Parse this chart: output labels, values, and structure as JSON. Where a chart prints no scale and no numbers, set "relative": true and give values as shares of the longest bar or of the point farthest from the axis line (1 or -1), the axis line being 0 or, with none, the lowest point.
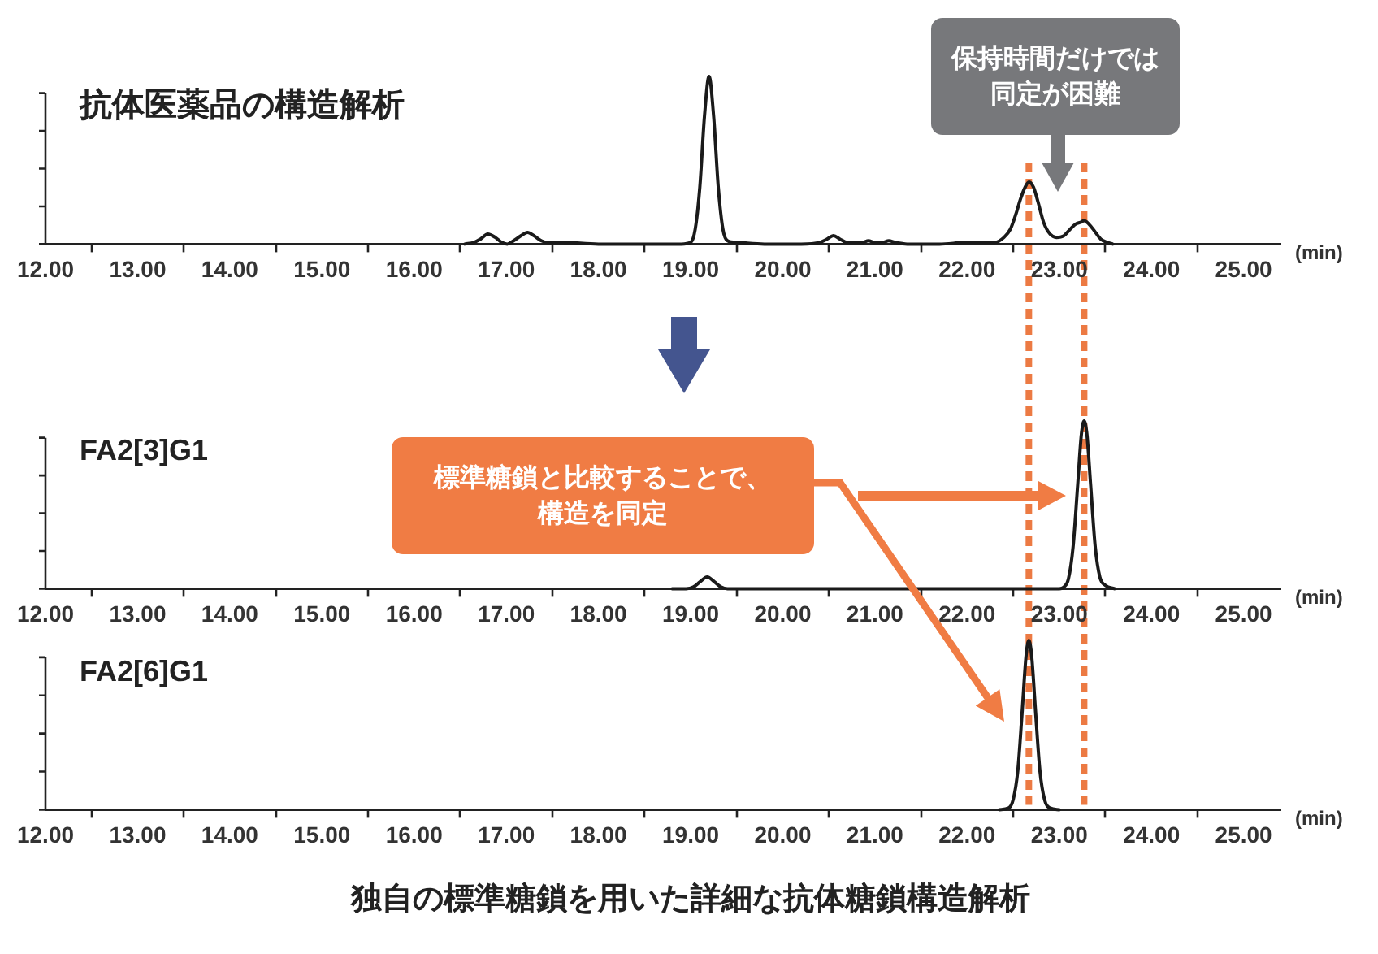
{
  "chart_data": [
    {
      "type": "line",
      "title": "抗体医薬品の構造解析",
      "relative": true,
      "xlabel": "(min)",
      "color": "#1a1a1a",
      "x": [
        16.55,
        16.65,
        16.72,
        16.8,
        16.88,
        16.95,
        17.01,
        17.08,
        17.16,
        17.23,
        17.3,
        17.38,
        17.45,
        17.6,
        18.0,
        18.5,
        18.9,
        19.0,
        19.05,
        19.1,
        19.15,
        19.2,
        19.25,
        19.3,
        19.35,
        19.4,
        19.5,
        19.8,
        20.2,
        20.4,
        20.48,
        20.55,
        20.62,
        20.7,
        20.78,
        20.86,
        20.93,
        21.0,
        21.08,
        21.15,
        21.22,
        21.35,
        21.7,
        22.0,
        22.1,
        22.2,
        22.3,
        22.4,
        22.47,
        22.53,
        22.58,
        22.63,
        22.67,
        22.72,
        22.77,
        22.83,
        22.9,
        22.97,
        23.05,
        23.12,
        23.18,
        23.23,
        23.27,
        23.32,
        23.38,
        23.45,
        23.52,
        23.58
      ],
      "values": [
        0,
        0.01,
        0.03,
        0.06,
        0.04,
        0.01,
        0,
        0.02,
        0.05,
        0.07,
        0.05,
        0.02,
        0.01,
        0.01,
        0,
        0,
        0,
        0.01,
        0.09,
        0.34,
        0.76,
        1,
        0.76,
        0.34,
        0.09,
        0.02,
        0.01,
        0,
        0,
        0.01,
        0.03,
        0.05,
        0.03,
        0.01,
        0.01,
        0.01,
        0.02,
        0.01,
        0.01,
        0.02,
        0.01,
        0,
        0,
        0.01,
        0.01,
        0.01,
        0.01,
        0.04,
        0.09,
        0.18,
        0.27,
        0.34,
        0.37,
        0.34,
        0.25,
        0.13,
        0.06,
        0.04,
        0.05,
        0.09,
        0.12,
        0.13,
        0.14,
        0.12,
        0.08,
        0.03,
        0.01,
        0
      ],
      "xlim": [
        12,
        25.4
      ],
      "xticks": [
        {
          "value": 12,
          "label": "12.00"
        },
        {
          "value": 12.5,
          "label": null
        },
        {
          "value": 13,
          "label": "13.00"
        },
        {
          "value": 13.5,
          "label": null
        },
        {
          "value": 14,
          "label": "14.00"
        },
        {
          "value": 14.5,
          "label": null
        },
        {
          "value": 15,
          "label": "15.00"
        },
        {
          "value": 15.5,
          "label": null
        },
        {
          "value": 16,
          "label": "16.00"
        },
        {
          "value": 16.5,
          "label": null
        },
        {
          "value": 17,
          "label": "17.00"
        },
        {
          "value": 17.5,
          "label": null
        },
        {
          "value": 18,
          "label": "18.00"
        },
        {
          "value": 18.5,
          "label": null
        },
        {
          "value": 19,
          "label": "19.00"
        },
        {
          "value": 19.5,
          "label": null
        },
        {
          "value": 20,
          "label": "20.00"
        },
        {
          "value": 20.5,
          "label": null
        },
        {
          "value": 21,
          "label": "21.00"
        },
        {
          "value": 21.5,
          "label": null
        },
        {
          "value": 22,
          "label": "22.00"
        },
        {
          "value": 22.5,
          "label": null
        },
        {
          "value": 23,
          "label": "23.00"
        },
        {
          "value": 23.5,
          "label": null
        },
        {
          "value": 24,
          "label": "24.00"
        },
        {
          "value": 24.5,
          "label": null
        },
        {
          "value": 25,
          "label": "25.00"
        }
      ],
      "ref_lines": [
        {
          "axis": "x",
          "value": 22.67,
          "color": "#ec7a43",
          "line_style": "dashed"
        },
        {
          "axis": "x",
          "value": 23.27,
          "color": "#ec7a43",
          "line_style": "dashed"
        }
      ],
      "annotations": [
        "保持時間だけでは同定が困難"
      ]
    },
    {
      "type": "line",
      "title": "FA2[3]G1",
      "relative": true,
      "xlabel": "(min)",
      "color": "#1a1a1a",
      "x": [
        18.8,
        18.95,
        19.03,
        19.1,
        19.18,
        19.26,
        19.33,
        19.4,
        19.6,
        21.0,
        22.9,
        23.0,
        23.05,
        23.1,
        23.15,
        23.2,
        23.24,
        23.27,
        23.3,
        23.34,
        23.39,
        23.44,
        23.5,
        23.6
      ],
      "values": [
        0,
        0,
        0.01,
        0.04,
        0.07,
        0.04,
        0.01,
        0,
        0,
        0,
        0,
        0,
        0.01,
        0.06,
        0.25,
        0.62,
        0.92,
        1,
        0.92,
        0.62,
        0.25,
        0.07,
        0.02,
        0
      ],
      "xlim": [
        12,
        25.4
      ],
      "xticks": [
        {
          "value": 12,
          "label": "12.00"
        },
        {
          "value": 12.5,
          "label": null
        },
        {
          "value": 13,
          "label": "13.00"
        },
        {
          "value": 13.5,
          "label": null
        },
        {
          "value": 14,
          "label": "14.00"
        },
        {
          "value": 14.5,
          "label": null
        },
        {
          "value": 15,
          "label": "15.00"
        },
        {
          "value": 15.5,
          "label": null
        },
        {
          "value": 16,
          "label": "16.00"
        },
        {
          "value": 16.5,
          "label": null
        },
        {
          "value": 17,
          "label": "17.00"
        },
        {
          "value": 17.5,
          "label": null
        },
        {
          "value": 18,
          "label": "18.00"
        },
        {
          "value": 18.5,
          "label": null
        },
        {
          "value": 19,
          "label": "19.00"
        },
        {
          "value": 19.5,
          "label": null
        },
        {
          "value": 20,
          "label": "20.00"
        },
        {
          "value": 20.5,
          "label": null
        },
        {
          "value": 21,
          "label": "21.00"
        },
        {
          "value": 21.5,
          "label": null
        },
        {
          "value": 22,
          "label": "22.00"
        },
        {
          "value": 22.5,
          "label": null
        },
        {
          "value": 23,
          "label": "23.00"
        },
        {
          "value": 23.5,
          "label": null
        },
        {
          "value": 24,
          "label": "24.00"
        },
        {
          "value": 24.5,
          "label": null
        },
        {
          "value": 25,
          "label": "25.00"
        }
      ],
      "ref_lines": [
        {
          "axis": "x",
          "value": 22.67,
          "color": "#ec7a43",
          "line_style": "dashed"
        },
        {
          "axis": "x",
          "value": 23.27,
          "color": "#ec7a43",
          "line_style": "dashed"
        }
      ],
      "annotations": [
        "標準糖鎖と比較することで、構造を同定"
      ]
    },
    {
      "type": "line",
      "title": "FA2[6]G1",
      "relative": true,
      "xlabel": "(min)",
      "color": "#1a1a1a",
      "x": [
        22.35,
        22.45,
        22.5,
        22.55,
        22.6,
        22.64,
        22.67,
        22.7,
        22.74,
        22.79,
        22.84,
        22.9,
        23.0
      ],
      "values": [
        0,
        0.01,
        0.06,
        0.23,
        0.6,
        0.91,
        1,
        0.91,
        0.6,
        0.23,
        0.06,
        0.01,
        0
      ],
      "xlim": [
        12,
        25.4
      ],
      "xticks": [
        {
          "value": 12,
          "label": "12.00"
        },
        {
          "value": 12.5,
          "label": null
        },
        {
          "value": 13,
          "label": "13.00"
        },
        {
          "value": 13.5,
          "label": null
        },
        {
          "value": 14,
          "label": "14.00"
        },
        {
          "value": 14.5,
          "label": null
        },
        {
          "value": 15,
          "label": "15.00"
        },
        {
          "value": 15.5,
          "label": null
        },
        {
          "value": 16,
          "label": "16.00"
        },
        {
          "value": 16.5,
          "label": null
        },
        {
          "value": 17,
          "label": "17.00"
        },
        {
          "value": 17.5,
          "label": null
        },
        {
          "value": 18,
          "label": "18.00"
        },
        {
          "value": 18.5,
          "label": null
        },
        {
          "value": 19,
          "label": "19.00"
        },
        {
          "value": 19.5,
          "label": null
        },
        {
          "value": 20,
          "label": "20.00"
        },
        {
          "value": 20.5,
          "label": null
        },
        {
          "value": 21,
          "label": "21.00"
        },
        {
          "value": 21.5,
          "label": null
        },
        {
          "value": 22,
          "label": "22.00"
        },
        {
          "value": 22.5,
          "label": null
        },
        {
          "value": 23,
          "label": "23.00"
        },
        {
          "value": 23.5,
          "label": null
        },
        {
          "value": 24,
          "label": "24.00"
        },
        {
          "value": 24.5,
          "label": null
        },
        {
          "value": 25,
          "label": "25.00"
        }
      ],
      "ref_lines": [
        {
          "axis": "x",
          "value": 22.67,
          "color": "#ec7a43",
          "line_style": "dashed"
        },
        {
          "axis": "x",
          "value": 23.27,
          "color": "#ec7a43",
          "line_style": "dashed"
        }
      ],
      "annotations": [
        "独自の標準糖鎖を用いた詳細な抗体糖鎖構造解析"
      ]
    }
  ]
}
